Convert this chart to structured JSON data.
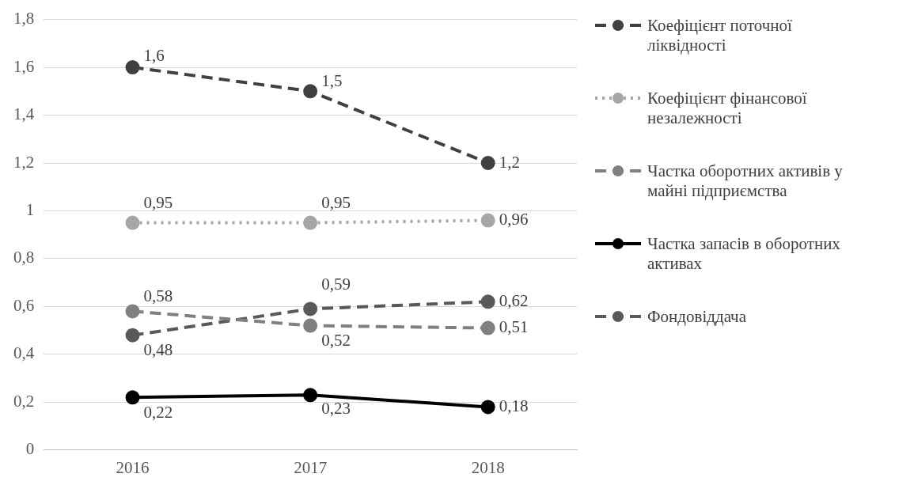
{
  "chart_data": {
    "type": "line",
    "categories": [
      "2016",
      "2017",
      "2018"
    ],
    "series": [
      {
        "name": "Коефіцієнт поточної ліквідності",
        "color": "#404040",
        "line_style": "dashed",
        "values": [
          1.6,
          1.5,
          1.2
        ],
        "value_labels": [
          "1,6",
          "1,5",
          "1,2"
        ]
      },
      {
        "name": "Коефіцієнт фінансової незалежності",
        "color": "#a6a6a6",
        "line_style": "dotted",
        "values": [
          0.95,
          0.95,
          0.96
        ],
        "value_labels": [
          "0,95",
          "0,95",
          "0,96"
        ]
      },
      {
        "name": "Частка оборотних активів у майні підприємства",
        "color": "#808080",
        "line_style": "dashed",
        "values": [
          0.58,
          0.52,
          0.51
        ],
        "value_labels": [
          "0,58",
          "0,52",
          "0,51"
        ]
      },
      {
        "name": "Частка запасів в оборотних активах",
        "color": "#000000",
        "line_style": "solid",
        "values": [
          0.22,
          0.23,
          0.18
        ],
        "value_labels": [
          "0,22",
          "0,23",
          "0,18"
        ]
      },
      {
        "name": "Фондовіддача",
        "color": "#595959",
        "line_style": "dashed",
        "values": [
          0.48,
          0.59,
          0.62
        ],
        "value_labels": [
          "0,48",
          "0,59",
          "0,62"
        ]
      }
    ],
    "ylim": [
      0,
      1.8
    ],
    "yticks": [
      0,
      {
        "value": 0.2,
        "label": "0,2"
      },
      {
        "value": 0.4,
        "label": "0,4"
      },
      {
        "value": 0.6,
        "label": "0,6"
      },
      {
        "value": 0.8,
        "label": "0,8"
      },
      1,
      {
        "value": 1.2,
        "label": "1,2"
      },
      {
        "value": 1.4,
        "label": "1,4"
      },
      {
        "value": 1.6,
        "label": "1,6"
      },
      {
        "value": 1.8,
        "label": "1,8"
      }
    ],
    "grid": "y",
    "legend": "right",
    "marker": "circle"
  }
}
